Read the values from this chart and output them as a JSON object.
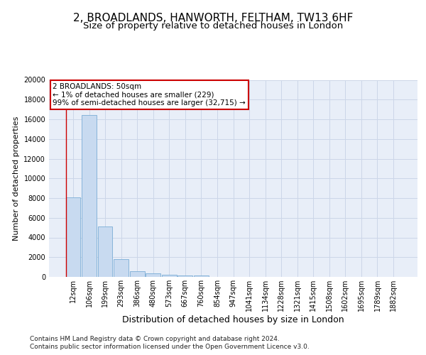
{
  "title": "2, BROADLANDS, HANWORTH, FELTHAM, TW13 6HF",
  "subtitle": "Size of property relative to detached houses in London",
  "xlabel": "Distribution of detached houses by size in London",
  "ylabel": "Number of detached properties",
  "bar_color": "#c8daf0",
  "bar_edge_color": "#7aadd6",
  "categories": [
    "12sqm",
    "106sqm",
    "199sqm",
    "293sqm",
    "386sqm",
    "480sqm",
    "573sqm",
    "667sqm",
    "760sqm",
    "854sqm",
    "947sqm",
    "1041sqm",
    "1134sqm",
    "1228sqm",
    "1321sqm",
    "1415sqm",
    "1508sqm",
    "1602sqm",
    "1695sqm",
    "1789sqm",
    "1882sqm"
  ],
  "values": [
    8050,
    16400,
    5100,
    1800,
    550,
    350,
    200,
    170,
    120,
    0,
    0,
    0,
    0,
    0,
    0,
    0,
    0,
    0,
    0,
    0,
    0
  ],
  "ylim": [
    0,
    20000
  ],
  "yticks": [
    0,
    2000,
    4000,
    6000,
    8000,
    10000,
    12000,
    14000,
    16000,
    18000,
    20000
  ],
  "annotation_text": "2 BROADLANDS: 50sqm\n← 1% of detached houses are smaller (229)\n99% of semi-detached houses are larger (32,715) →",
  "annotation_box_color": "#ffffff",
  "annotation_box_edge_color": "#cc0000",
  "vline_color": "#cc0000",
  "grid_color": "#ccd6e8",
  "background_color": "#e8eef8",
  "footer_line1": "Contains HM Land Registry data © Crown copyright and database right 2024.",
  "footer_line2": "Contains public sector information licensed under the Open Government Licence v3.0.",
  "title_fontsize": 11,
  "subtitle_fontsize": 9.5,
  "xlabel_fontsize": 9,
  "ylabel_fontsize": 8,
  "tick_fontsize": 7,
  "annotation_fontsize": 7.5,
  "footer_fontsize": 6.5
}
